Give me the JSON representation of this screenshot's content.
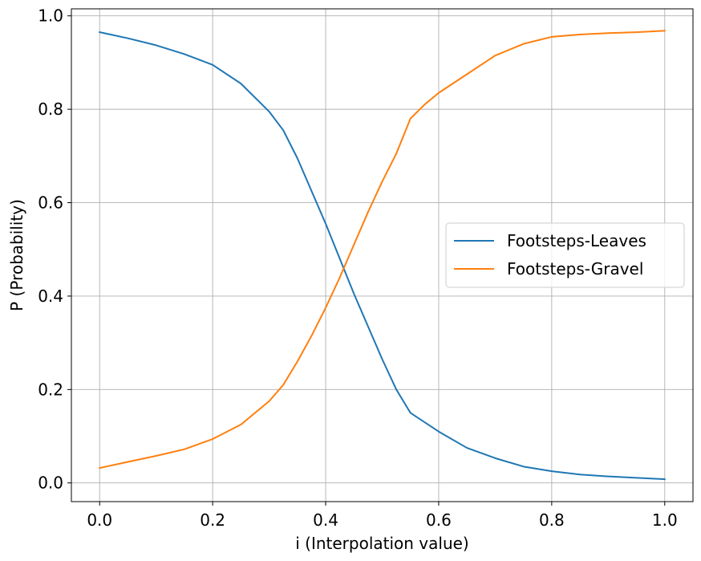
{
  "chart_data": {
    "type": "line",
    "title": "",
    "xlabel": "i (Interpolation value)",
    "ylabel": "P (Probability)",
    "xlim": [
      -0.05,
      1.05
    ],
    "ylim": [
      -0.04,
      1.015
    ],
    "xticks": [
      0.0,
      0.2,
      0.4,
      0.6,
      0.8,
      1.0
    ],
    "xtick_labels": [
      "0.0",
      "0.2",
      "0.4",
      "0.6",
      "0.8",
      "1.0"
    ],
    "yticks": [
      0.0,
      0.2,
      0.4,
      0.6,
      0.8,
      1.0
    ],
    "ytick_labels": [
      "0.0",
      "0.2",
      "0.4",
      "0.6",
      "0.8",
      "1.0"
    ],
    "grid": true,
    "legend_position": "center-right",
    "x": [
      0.0,
      0.05,
      0.1,
      0.15,
      0.2,
      0.25,
      0.3,
      0.325,
      0.35,
      0.375,
      0.4,
      0.425,
      0.45,
      0.475,
      0.5,
      0.525,
      0.55,
      0.575,
      0.6,
      0.65,
      0.7,
      0.75,
      0.8,
      0.85,
      0.9,
      0.95,
      1.0
    ],
    "series": [
      {
        "name": "Footsteps-Leaves",
        "color": "#1f77b4",
        "values": [
          0.965,
          0.952,
          0.937,
          0.918,
          0.895,
          0.855,
          0.795,
          0.755,
          0.695,
          0.625,
          0.555,
          0.48,
          0.405,
          0.335,
          0.265,
          0.2,
          0.15,
          0.13,
          0.11,
          0.075,
          0.053,
          0.035,
          0.025,
          0.018,
          0.014,
          0.011,
          0.008
        ]
      },
      {
        "name": "Footsteps-Gravel",
        "color": "#ff7f0e",
        "values": [
          0.032,
          0.045,
          0.058,
          0.072,
          0.094,
          0.125,
          0.175,
          0.21,
          0.26,
          0.315,
          0.375,
          0.44,
          0.51,
          0.58,
          0.645,
          0.705,
          0.78,
          0.81,
          0.835,
          0.875,
          0.915,
          0.94,
          0.955,
          0.96,
          0.963,
          0.965,
          0.968
        ]
      }
    ]
  }
}
